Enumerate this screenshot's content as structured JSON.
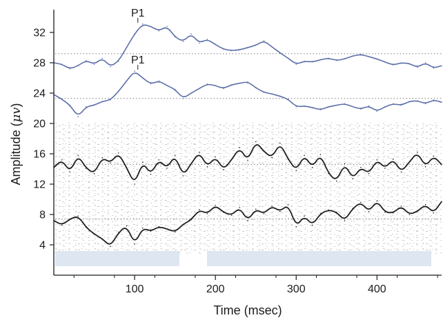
{
  "chart_data": {
    "type": "line",
    "title": "",
    "xlabel": "Time (msec)",
    "ylabel_prefix": "Amplitude (",
    "ylabel_unit": "μv",
    "ylabel_suffix": ")",
    "xlim": [
      0,
      480
    ],
    "ylim": [
      0,
      35
    ],
    "xticks": [
      100,
      200,
      300,
      400
    ],
    "xtick_labels": [
      "100",
      "200",
      "300",
      "400"
    ],
    "yticks": [
      4,
      8,
      12,
      16,
      20,
      24,
      28,
      32
    ],
    "ytick_labels": [
      "4",
      "8",
      "12",
      "16",
      "20",
      "24",
      "28",
      "32"
    ],
    "grid": false,
    "series": [
      {
        "color": "#5b6fa8",
        "baseline": 29.2,
        "x": [
          0,
          10,
          20,
          30,
          40,
          50,
          60,
          70,
          80,
          90,
          100,
          110,
          120,
          130,
          140,
          150,
          160,
          170,
          180,
          190,
          200,
          210,
          220,
          230,
          240,
          250,
          260,
          270,
          280,
          290,
          300,
          310,
          320,
          330,
          340,
          350,
          360,
          370,
          380,
          390,
          400,
          410,
          420,
          430,
          440,
          450,
          460,
          470,
          480
        ],
        "y": [
          28,
          27.8,
          27.2,
          27.6,
          28.3,
          27.8,
          28.6,
          27.5,
          28.2,
          30,
          31.8,
          33.1,
          32.8,
          32.2,
          32.8,
          31.4,
          30.8,
          31.8,
          30.6,
          31.1,
          30.4,
          29.8,
          29.6,
          29.7,
          30,
          30.3,
          30.9,
          30.1,
          29.3,
          28.6,
          27.8,
          28.2,
          28.1,
          28.4,
          28.6,
          28.3,
          28.5,
          28.9,
          29.1,
          28.8,
          28.5,
          28.1,
          27.7,
          28,
          27.9,
          27.4,
          28,
          27.3,
          27.6
        ]
      },
      {
        "color": "#5b6fa8",
        "baseline": 23.3,
        "x": [
          0,
          10,
          20,
          30,
          40,
          50,
          60,
          70,
          80,
          90,
          100,
          110,
          120,
          130,
          140,
          150,
          160,
          170,
          180,
          190,
          200,
          210,
          220,
          230,
          240,
          250,
          260,
          270,
          280,
          290,
          300,
          310,
          320,
          330,
          340,
          350,
          360,
          370,
          380,
          390,
          400,
          410,
          420,
          430,
          440,
          450,
          460,
          470,
          480
        ],
        "y": [
          23.8,
          23.2,
          22.4,
          20.9,
          22.2,
          22.4,
          22.9,
          23.1,
          24.2,
          25.6,
          26.9,
          26,
          25.2,
          25.6,
          25,
          24.5,
          23.3,
          24,
          24.6,
          25.2,
          25,
          24.6,
          25.1,
          25.3,
          25.5,
          24.7,
          24.1,
          23.9,
          23.6,
          23.2,
          22.2,
          22.3,
          22.1,
          21.8,
          22.2,
          22.4,
          22.6,
          22.2,
          21.9,
          22.3,
          21.6,
          22.2,
          22.6,
          22.4,
          22.9,
          23,
          22.6,
          23.1,
          22.8
        ]
      },
      {
        "color": "#1f1f1f",
        "baseline": 14.6,
        "x": [
          0,
          10,
          20,
          30,
          40,
          50,
          60,
          70,
          80,
          90,
          100,
          110,
          120,
          130,
          140,
          150,
          160,
          170,
          180,
          190,
          200,
          210,
          220,
          230,
          240,
          250,
          260,
          270,
          280,
          290,
          300,
          310,
          320,
          330,
          340,
          350,
          360,
          370,
          380,
          390,
          400,
          410,
          420,
          430,
          440,
          450,
          460,
          470,
          480
        ],
        "y": [
          14.2,
          15.2,
          13.6,
          15.8,
          14.1,
          13.4,
          15.5,
          14.8,
          16.1,
          14.2,
          12,
          14.9,
          13.3,
          15.2,
          14.1,
          15.8,
          13.1,
          14.7,
          16.2,
          14.3,
          15.6,
          13.9,
          15.2,
          16.8,
          15.1,
          17.6,
          16.3,
          15.5,
          17.4,
          15.3,
          13.8,
          15.8,
          14.2,
          15.9,
          13.4,
          12.4,
          14.7,
          12.7,
          14.2,
          13.4,
          15.2,
          14.1,
          15.3,
          13.6,
          14.9,
          16.2,
          14.3,
          15.7,
          14.6
        ]
      },
      {
        "color": "#1f1f1f",
        "baseline": 7.4,
        "x": [
          0,
          10,
          20,
          30,
          40,
          50,
          60,
          70,
          80,
          90,
          100,
          110,
          120,
          130,
          140,
          150,
          160,
          170,
          180,
          190,
          200,
          210,
          220,
          230,
          240,
          250,
          260,
          270,
          280,
          290,
          300,
          310,
          320,
          330,
          340,
          350,
          360,
          370,
          380,
          390,
          400,
          410,
          420,
          430,
          440,
          450,
          460,
          470,
          480
        ],
        "y": [
          7.2,
          6.6,
          7.4,
          7.8,
          6.3,
          5.4,
          4.8,
          3.8,
          5.6,
          6.5,
          4.1,
          6.2,
          5.8,
          6.4,
          6.1,
          5.7,
          6.7,
          7.3,
          8.6,
          8.1,
          9.2,
          8.3,
          7.9,
          8.9,
          7.2,
          8.7,
          8.1,
          9.1,
          8.4,
          9.3,
          6.4,
          7.8,
          6.6,
          8.1,
          8.6,
          8.3,
          7.2,
          8.8,
          9.6,
          8.4,
          9.8,
          8.3,
          8.2,
          9.1,
          8,
          8.4,
          9.3,
          8.2,
          9.7
        ]
      }
    ],
    "annotations": [
      {
        "text": "P1",
        "x": 104,
        "y": 33.1,
        "series": 0
      },
      {
        "text": "P1",
        "x": 104,
        "y": 26.9,
        "series": 1
      }
    ]
  }
}
